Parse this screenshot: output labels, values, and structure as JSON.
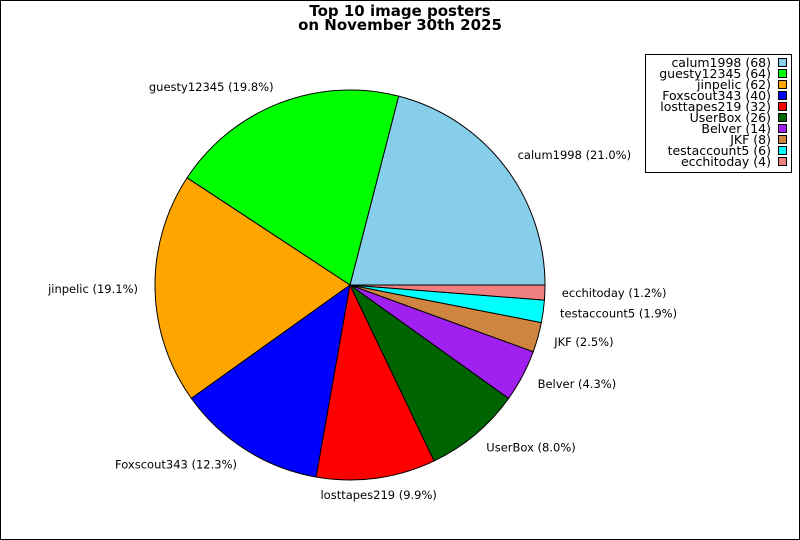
{
  "chart_data": {
    "type": "pie",
    "title_lines": [
      "Top 10 image posters",
      "on November 30th 2025"
    ],
    "start_angle_deg": 0,
    "direction": "counterclockwise",
    "legend_position": "top-right",
    "slices": [
      {
        "name": "calum1998",
        "value": 68,
        "label": "calum1998 (21.0%)",
        "legend": "calum1998 (68)",
        "color": "#87ceeb"
      },
      {
        "name": "guesty12345",
        "value": 64,
        "label": "guesty12345 (19.8%)",
        "legend": "guesty12345 (64)",
        "color": "#00ff00"
      },
      {
        "name": "jinpelic",
        "value": 62,
        "label": "jinpelic (19.1%)",
        "legend": "jinpelic (62)",
        "color": "#ffa500"
      },
      {
        "name": "Foxscout343",
        "value": 40,
        "label": "Foxscout343 (12.3%)",
        "legend": "Foxscout343 (40)",
        "color": "#0000ff"
      },
      {
        "name": "losttapes219",
        "value": 32,
        "label": "losttapes219 (9.9%)",
        "legend": "losttapes219 (32)",
        "color": "#ff0000"
      },
      {
        "name": "UserBox",
        "value": 26,
        "label": "UserBox (8.0%)",
        "legend": "UserBox (26)",
        "color": "#006400"
      },
      {
        "name": "Belver",
        "value": 14,
        "label": "Belver (4.3%)",
        "legend": "Belver (14)",
        "color": "#a020f0"
      },
      {
        "name": "JKF",
        "value": 8,
        "label": "JKF (2.5%)",
        "legend": "JKF (8)",
        "color": "#cd853f"
      },
      {
        "name": "testaccount5",
        "value": 6,
        "label": "testaccount5 (1.9%)",
        "legend": "testaccount5 (6)",
        "color": "#00ffff"
      },
      {
        "name": "ecchitoday",
        "value": 4,
        "label": "ecchitoday (1.2%)",
        "legend": "ecchitoday (4)",
        "color": "#f08080"
      }
    ]
  }
}
